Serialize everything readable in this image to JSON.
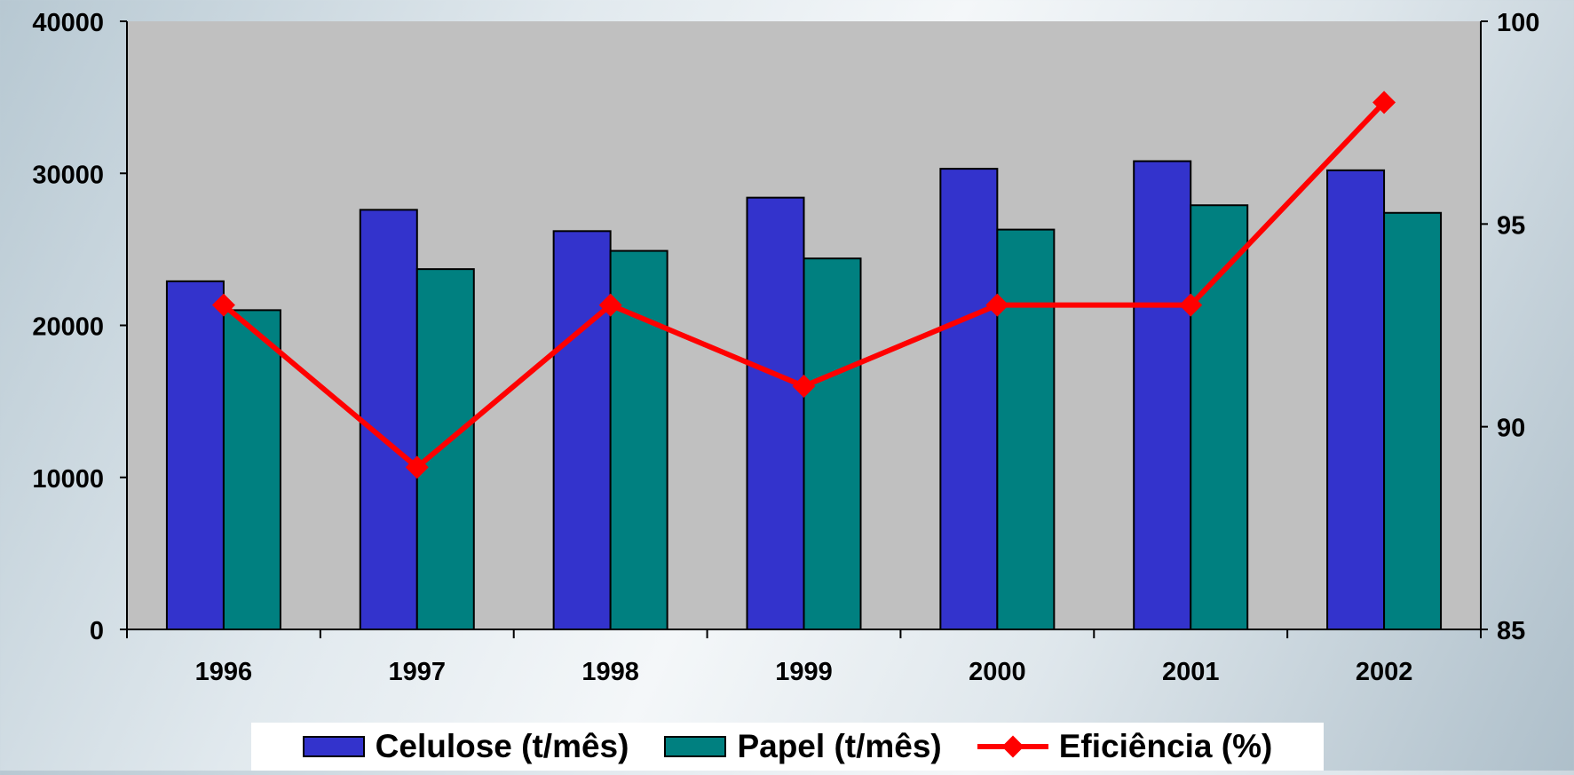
{
  "chart_data": {
    "type": "bar",
    "categories": [
      "1996",
      "1997",
      "1998",
      "1999",
      "2000",
      "2001",
      "2002"
    ],
    "series": [
      {
        "name": "Celulose (t/mês)",
        "type": "bar",
        "axis": "left",
        "color": "#3333cc",
        "values": [
          22900,
          27600,
          26200,
          28400,
          30300,
          30800,
          30200
        ]
      },
      {
        "name": "Papel (t/mês)",
        "type": "bar",
        "axis": "left",
        "color": "#008080",
        "values": [
          21000,
          23700,
          24900,
          24400,
          26300,
          27900,
          27400
        ]
      },
      {
        "name": "Eficiência (%)",
        "type": "line",
        "axis": "right",
        "color": "#ff0000",
        "values": [
          93.0,
          89.0,
          93.0,
          91.0,
          93.0,
          93.0,
          98.0
        ]
      }
    ],
    "y_left": {
      "min": 0,
      "max": 40000,
      "ticks": [
        "0",
        "10000",
        "20000",
        "30000",
        "40000"
      ]
    },
    "y_right": {
      "min": 85,
      "max": 100,
      "ticks": [
        "85",
        "90",
        "95",
        "100"
      ]
    },
    "plot_background": "#c0c0c0",
    "legend_position": "bottom",
    "grid": false
  }
}
